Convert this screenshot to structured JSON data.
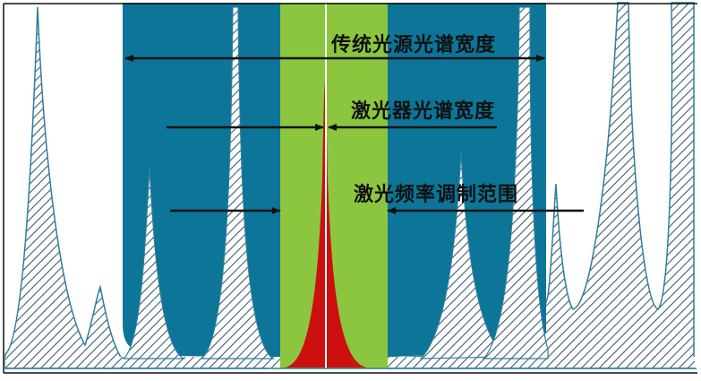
{
  "labels": {
    "traditional_width": "传统光源光谱宽度",
    "laser_width": "激光器光谱宽度",
    "modulation_range": "激光频率调制范围"
  },
  "colors": {
    "traditional_band": "#0c7598",
    "modulation_band": "#8cc63f",
    "laser_peak": "#cc1010",
    "hatch_line": "#3e5c70",
    "center_line": "#ffffff"
  }
}
